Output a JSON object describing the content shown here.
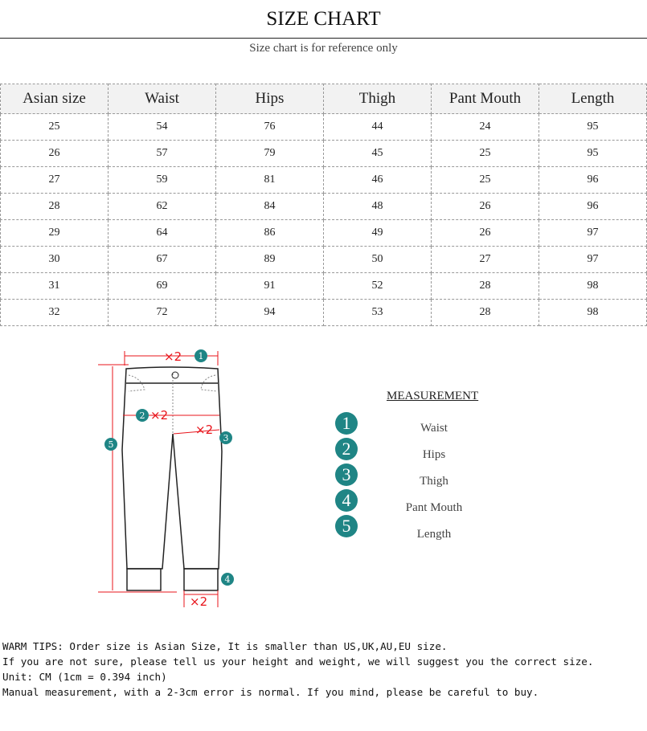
{
  "title": "SIZE CHART",
  "subtitle": "Size chart is for reference only",
  "table": {
    "headers": [
      "Asian size",
      "Waist",
      "Hips",
      "Thigh",
      "Pant Mouth",
      "Length"
    ],
    "rows": [
      [
        "25",
        "54",
        "76",
        "44",
        "24",
        "95"
      ],
      [
        "26",
        "57",
        "79",
        "45",
        "25",
        "95"
      ],
      [
        "27",
        "59",
        "81",
        "46",
        "25",
        "96"
      ],
      [
        "28",
        "62",
        "84",
        "48",
        "26",
        "96"
      ],
      [
        "29",
        "64",
        "86",
        "49",
        "26",
        "97"
      ],
      [
        "30",
        "67",
        "89",
        "50",
        "27",
        "97"
      ],
      [
        "31",
        "69",
        "91",
        "52",
        "28",
        "98"
      ],
      [
        "32",
        "72",
        "94",
        "53",
        "28",
        "98"
      ]
    ]
  },
  "diagram": {
    "multiplier": "×2",
    "accent": "#e8141b",
    "badge_color": "#1f8585"
  },
  "measurement": {
    "title": "MEASUREMENT",
    "items": [
      {
        "num": "1",
        "label": "Waist"
      },
      {
        "num": "2",
        "label": "Hips"
      },
      {
        "num": "3",
        "label": "Thigh"
      },
      {
        "num": "4",
        "label": "Pant Mouth"
      },
      {
        "num": "5",
        "label": "Length"
      }
    ]
  },
  "tips": [
    "WARM TIPS: Order size is Asian Size, It is smaller than US,UK,AU,EU size.",
    "If you are not sure, please tell us your height and weight, we will suggest you the correct size.",
    "Unit: CM (1cm = 0.394 inch)",
    "Manual measurement, with a 2-3cm error is normal. If you mind, please be careful to buy."
  ]
}
